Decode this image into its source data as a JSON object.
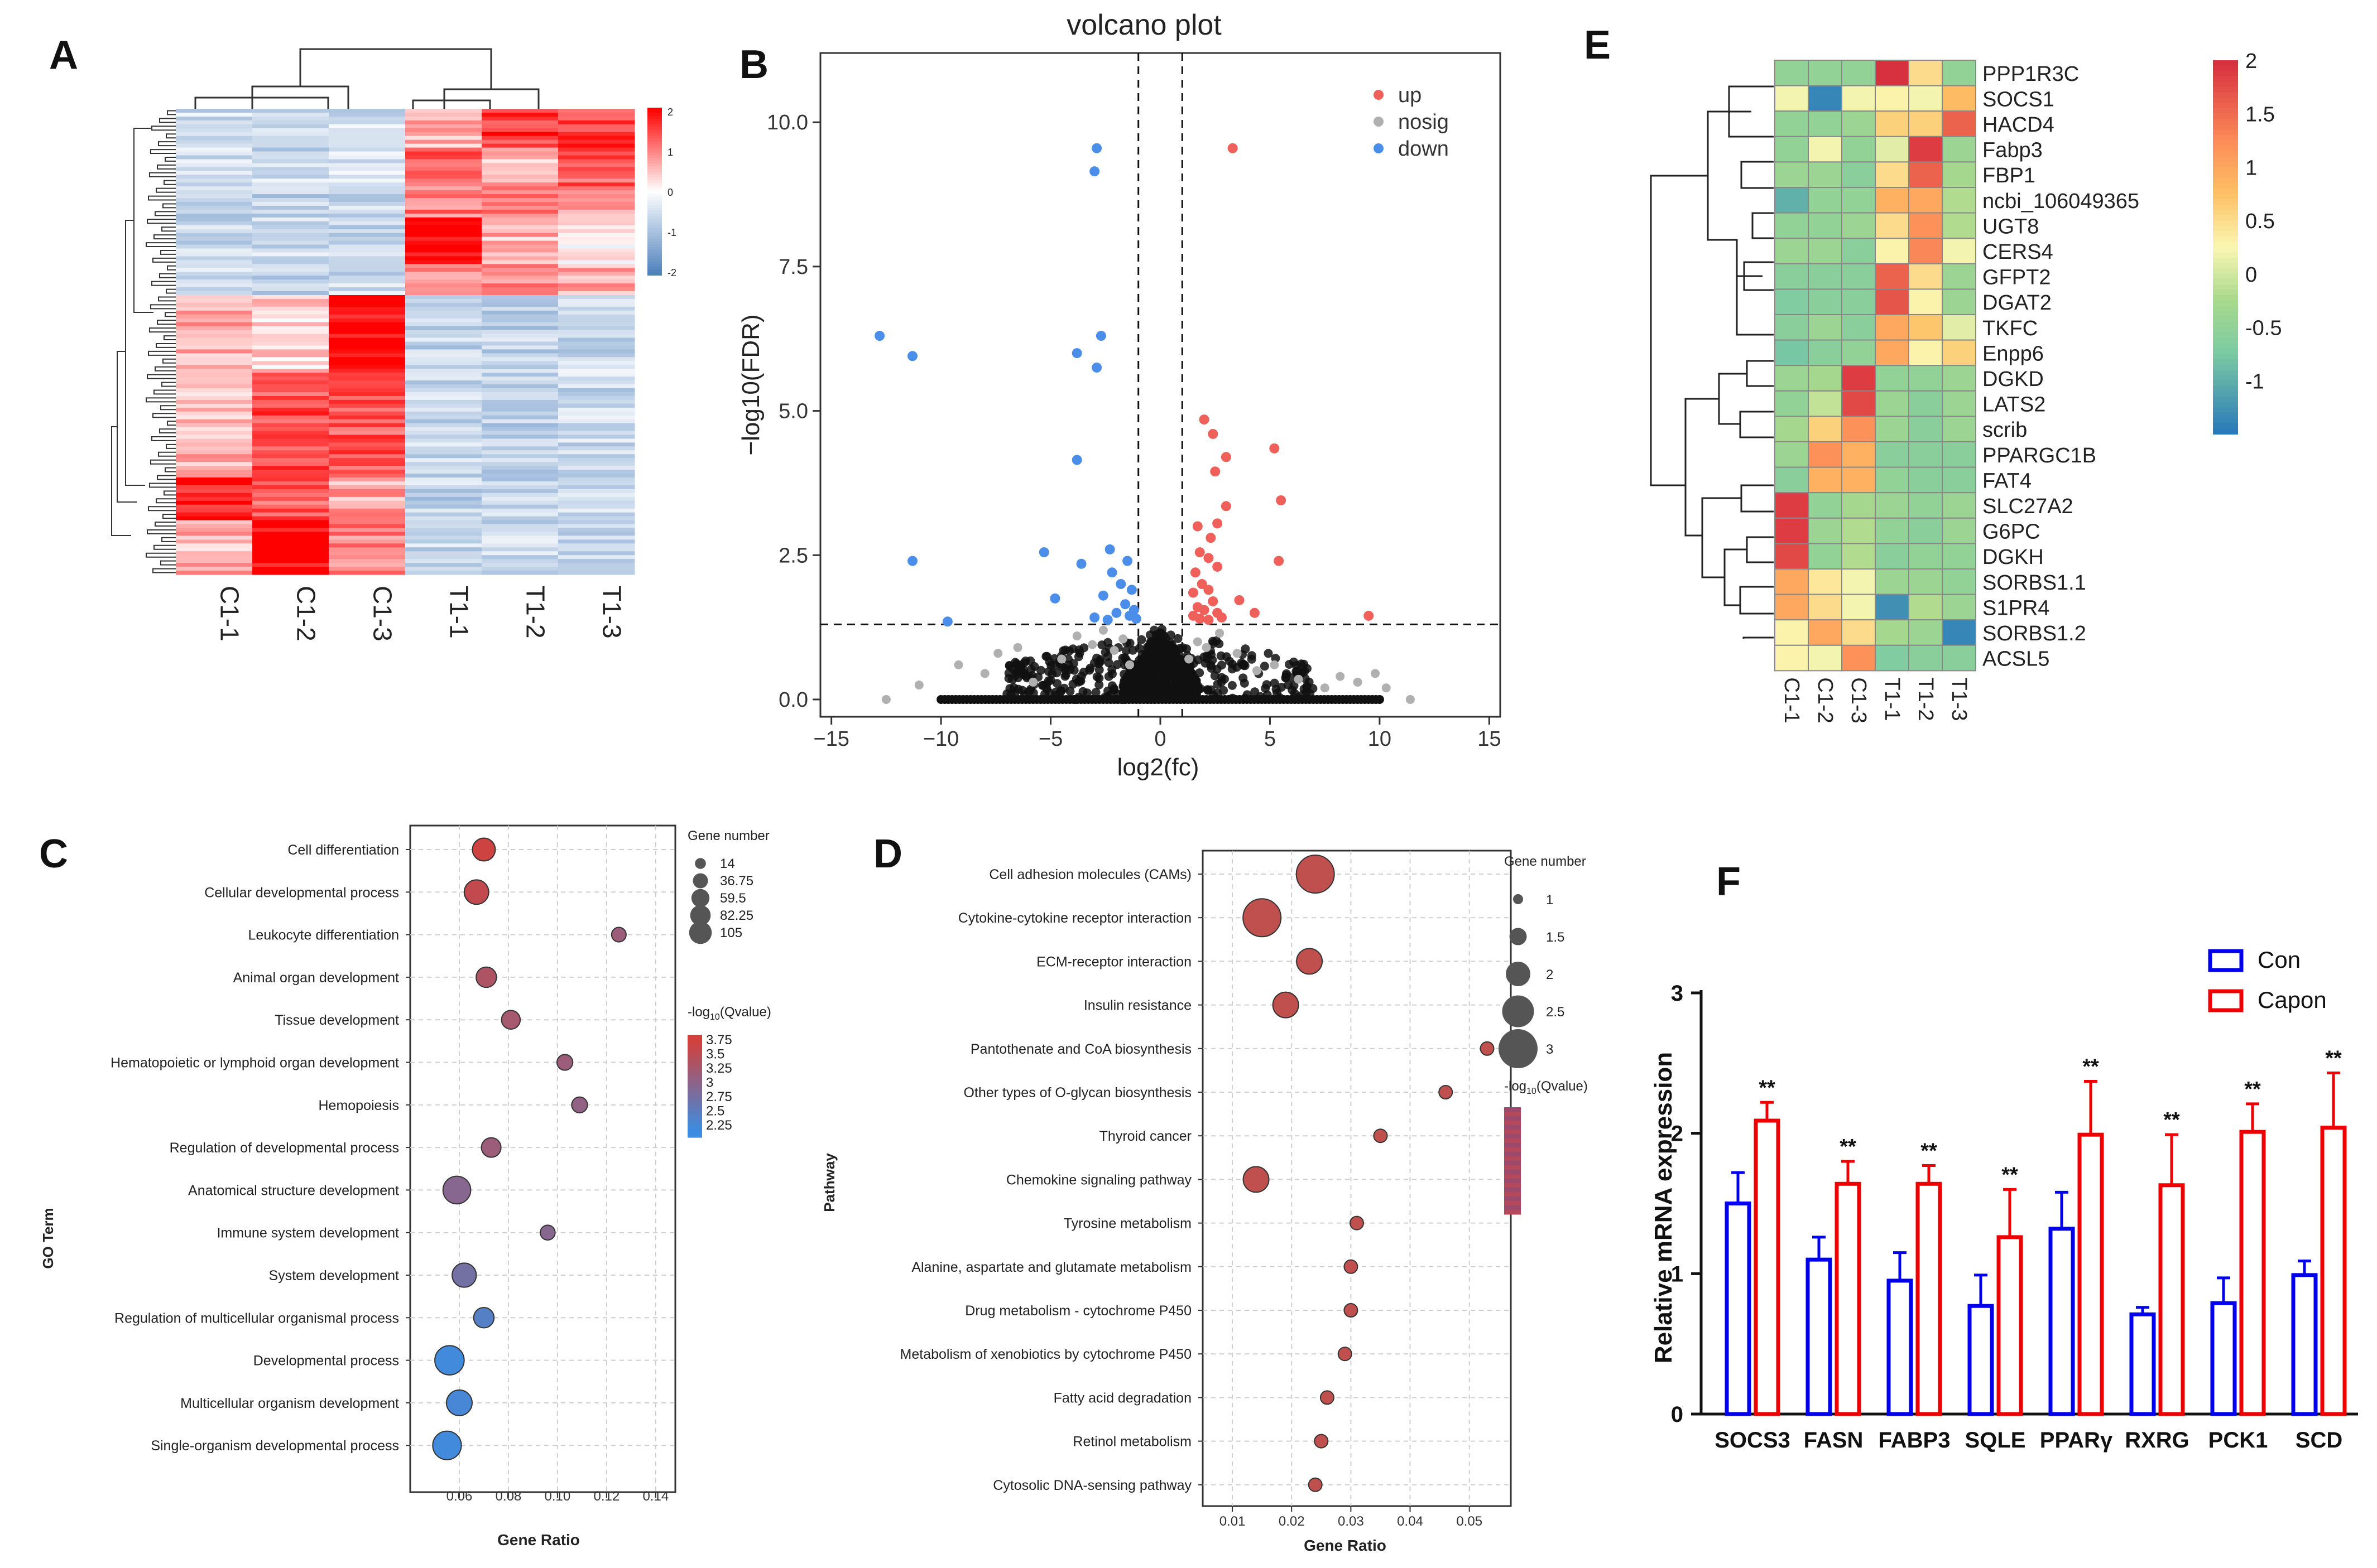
{
  "panel_letters": {
    "A": "A",
    "B": "B",
    "C": "C",
    "D": "D",
    "E": "E",
    "F": "F"
  },
  "colors": {
    "up": "#f0605a",
    "nosig": "#b0b0b0",
    "down": "#4a8eea",
    "heat_red": "#ff0000",
    "heat_blue": "#4f81bd",
    "con": "#0000ee",
    "capon": "#ee0000"
  },
  "chart_data": [
    {
      "id": "A",
      "type": "heatmap",
      "columns": [
        "C1-1",
        "C1-2",
        "C1-3",
        "T1-1",
        "T1-2",
        "T1-3"
      ],
      "row_count": 120,
      "legend": {
        "ticks": [
          "2",
          "1",
          "0",
          "-1",
          "-2"
        ],
        "range": [
          -2,
          2
        ]
      }
    },
    {
      "id": "B",
      "type": "scatter",
      "title": "volcano plot",
      "xlabel": "log2(fc)",
      "ylabel": "−log10(FDR)",
      "xlim": [
        -15.5,
        15.5
      ],
      "ylim": [
        -0.3,
        11.2
      ],
      "xticks": [
        -15,
        -10,
        -5,
        0,
        5,
        10,
        15
      ],
      "xtick_labels": [
        "−15",
        "−10",
        "−5",
        "0",
        "5",
        "10",
        "15"
      ],
      "yticks": [
        0,
        2.5,
        5,
        7.5,
        10
      ],
      "ytick_labels": [
        "0.0",
        "2.5",
        "5.0",
        "7.5",
        "10.0"
      ],
      "fc_threshold": [
        -1,
        1
      ],
      "fdr_threshold": 1.3,
      "legend": [
        {
          "label": "up",
          "key": "up"
        },
        {
          "label": "nosig",
          "key": "nosig"
        },
        {
          "label": "down",
          "key": "down"
        }
      ],
      "up_points": [
        [
          3.3,
          9.55
        ],
        [
          2.0,
          4.85
        ],
        [
          2.4,
          4.6
        ],
        [
          5.2,
          4.35
        ],
        [
          3.0,
          4.2
        ],
        [
          2.5,
          3.95
        ],
        [
          5.5,
          3.45
        ],
        [
          3.0,
          3.35
        ],
        [
          2.6,
          3.05
        ],
        [
          1.7,
          3.0
        ],
        [
          2.3,
          2.8
        ],
        [
          1.8,
          2.55
        ],
        [
          2.2,
          2.45
        ],
        [
          5.4,
          2.4
        ],
        [
          2.6,
          2.3
        ],
        [
          1.6,
          2.2
        ],
        [
          1.9,
          2.0
        ],
        [
          2.2,
          1.9
        ],
        [
          1.5,
          1.85
        ],
        [
          2.4,
          1.7
        ],
        [
          3.6,
          1.72
        ],
        [
          1.7,
          1.6
        ],
        [
          2.0,
          1.55
        ],
        [
          2.6,
          1.5
        ],
        [
          1.5,
          1.45
        ],
        [
          1.8,
          1.4
        ],
        [
          2.2,
          1.38
        ],
        [
          2.8,
          1.42
        ],
        [
          4.3,
          1.5
        ],
        [
          9.5,
          1.45
        ]
      ],
      "down_points": [
        [
          -2.9,
          9.55
        ],
        [
          -3.0,
          9.15
        ],
        [
          -12.8,
          6.3
        ],
        [
          -11.3,
          5.95
        ],
        [
          -2.7,
          6.3
        ],
        [
          -3.8,
          6.0
        ],
        [
          -2.9,
          5.75
        ],
        [
          -3.8,
          4.15
        ],
        [
          -11.3,
          2.4
        ],
        [
          -5.3,
          2.55
        ],
        [
          -2.3,
          2.6
        ],
        [
          -1.5,
          2.4
        ],
        [
          -3.6,
          2.35
        ],
        [
          -2.2,
          2.2
        ],
        [
          -1.8,
          2.0
        ],
        [
          -1.3,
          1.9
        ],
        [
          -4.8,
          1.75
        ],
        [
          -2.6,
          1.8
        ],
        [
          -1.6,
          1.65
        ],
        [
          -1.2,
          1.55
        ],
        [
          -2.0,
          1.5
        ],
        [
          -1.4,
          1.45
        ],
        [
          -1.1,
          1.4
        ],
        [
          -3.0,
          1.42
        ],
        [
          -9.7,
          1.35
        ],
        [
          -2.4,
          1.38
        ]
      ],
      "nosig_points": [
        [
          -12.5,
          0.0
        ],
        [
          -11.0,
          0.25
        ],
        [
          -9.2,
          0.6
        ],
        [
          -8.0,
          0.45
        ],
        [
          -7.4,
          0.8
        ],
        [
          -6.5,
          0.9
        ],
        [
          -5.8,
          0.3
        ],
        [
          -4.5,
          0.7
        ],
        [
          -3.8,
          1.1
        ],
        [
          -3.1,
          0.95
        ],
        [
          -2.6,
          1.2
        ],
        [
          -2.1,
          0.85
        ],
        [
          -1.7,
          1.05
        ],
        [
          -1.4,
          0.6
        ],
        [
          1.3,
          0.7
        ],
        [
          1.7,
          1.0
        ],
        [
          2.1,
          0.9
        ],
        [
          2.7,
          1.15
        ],
        [
          3.5,
          0.8
        ],
        [
          4.4,
          0.5
        ],
        [
          5.2,
          0.6
        ],
        [
          6.3,
          0.35
        ],
        [
          7.5,
          0.2
        ],
        [
          8.2,
          0.4
        ],
        [
          9.0,
          0.3
        ],
        [
          9.8,
          0.45
        ],
        [
          10.3,
          0.2
        ],
        [
          11.4,
          0.0
        ]
      ]
    },
    {
      "id": "C",
      "type": "scatter",
      "xlabel": "Gene Ratio",
      "ylabel": "GO Term",
      "xlim": [
        0.04,
        0.148
      ],
      "xticks": [
        0.06,
        0.08,
        0.1,
        0.12,
        0.14
      ],
      "xtick_labels": [
        "0.06",
        "0.08",
        "0.10",
        "0.12",
        "0.14"
      ],
      "terms": [
        "Cell differentiation",
        "Cellular developmental process",
        "Leukocyte differentiation",
        "Animal organ development",
        "Tissue development",
        "Hematopoietic or lymphoid organ development",
        "Hemopoiesis",
        "Regulation of developmental process",
        "Anatomical structure development",
        "Immune system development",
        "System development",
        "Regulation of multicellular organismal process",
        "Developmental process",
        "Multicellular organism development",
        "Single-organism developmental process"
      ],
      "gene_ratio": [
        0.07,
        0.067,
        0.125,
        0.071,
        0.081,
        0.103,
        0.109,
        0.073,
        0.059,
        0.096,
        0.062,
        0.07,
        0.056,
        0.06,
        0.055
      ],
      "gene_number": [
        52,
        62,
        14,
        38,
        30,
        18,
        18,
        34,
        85,
        15,
        60,
        38,
        98,
        70,
        92
      ],
      "neg_log10_q": [
        3.7,
        3.6,
        3.2,
        3.4,
        3.3,
        3.2,
        3.1,
        3.2,
        3.0,
        3.0,
        2.8,
        2.5,
        2.3,
        2.35,
        2.3
      ],
      "size_legend": {
        "title": "Gene number",
        "labels": [
          "14",
          "36.75",
          "59.5",
          "82.25",
          "105"
        ],
        "values": [
          14,
          36.75,
          59.5,
          82.25,
          105
        ]
      },
      "color_legend": {
        "title": "-log",
        "sub": "10",
        "tail": "(Qvalue)",
        "labels": [
          "3.75",
          "3.5",
          "3.25",
          "3",
          "2.75",
          "2.5",
          "2.25"
        ]
      }
    },
    {
      "id": "D",
      "type": "scatter",
      "xlabel": "Gene Ratio",
      "ylabel": "Pathway",
      "xlim": [
        0.005,
        0.057
      ],
      "xticks": [
        0.01,
        0.02,
        0.03,
        0.04,
        0.05
      ],
      "xtick_labels": [
        "0.01",
        "0.02",
        "0.03",
        "0.04",
        "0.05"
      ],
      "terms": [
        "Cell adhesion molecules (CAMs)",
        "Cytokine-cytokine receptor interaction",
        "ECM-receptor interaction",
        "Insulin resistance",
        "Pantothenate and CoA biosynthesis",
        "Other types of O-glycan biosynthesis",
        "Thyroid cancer",
        "Chemokine signaling pathway",
        "Tyrosine metabolism",
        "Alanine, aspartate and glutamate metabolism",
        "Drug metabolism - cytochrome P450",
        "Metabolism of xenobiotics by cytochrome P450",
        "Fatty acid degradation",
        "Retinol metabolism",
        "Cytosolic DNA-sensing pathway"
      ],
      "gene_ratio": [
        0.024,
        0.015,
        0.023,
        0.019,
        0.053,
        0.046,
        0.035,
        0.014,
        0.031,
        0.03,
        0.03,
        0.029,
        0.026,
        0.025,
        0.024
      ],
      "gene_number": [
        3,
        3,
        2,
        2,
        1,
        1,
        1,
        2,
        1,
        1,
        1,
        1,
        1,
        1,
        1
      ],
      "size_legend": {
        "title": "Gene number",
        "labels": [
          "1",
          "1.5",
          "2",
          "2.5",
          "3"
        ],
        "values": [
          1,
          1.5,
          2,
          2.5,
          3
        ]
      },
      "color_legend": {
        "title": "-log",
        "sub": "10",
        "tail": "(Qvalue)"
      }
    },
    {
      "id": "E",
      "type": "heatmap",
      "columns": [
        "C1-1",
        "C1-2",
        "C1-3",
        "T1-1",
        "T1-2",
        "T1-3"
      ],
      "rows": [
        "PPP1R3C",
        "SOCS1",
        "HACD4",
        "Fabp3",
        "FBP1",
        "ncbi_106049365",
        "UGT8",
        "CERS4",
        "GFPT2",
        "DGAT2",
        "TKFC",
        "Enpp6",
        "DGKD",
        "LATS2",
        "scrib",
        "PPARGC1B",
        "FAT4",
        "SLC27A2",
        "G6PC",
        "DGKH",
        "SORBS1.1",
        "S1PR4",
        "SORBS1.2",
        "ACSL5"
      ],
      "values": [
        [
          -0.5,
          -0.5,
          -0.5,
          2.0,
          0.5,
          -0.5
        ],
        [
          0.2,
          -1.4,
          0.2,
          0.3,
          0.2,
          0.8
        ],
        [
          -0.5,
          -0.5,
          -0.4,
          0.6,
          0.6,
          1.6
        ],
        [
          -0.5,
          0.2,
          -0.5,
          0.1,
          1.9,
          -0.4
        ],
        [
          -0.4,
          -0.4,
          -0.6,
          0.5,
          1.6,
          -0.3
        ],
        [
          -1.0,
          -0.5,
          -0.5,
          0.9,
          1.0,
          -0.2
        ],
        [
          -0.5,
          -0.5,
          -0.4,
          0.5,
          1.2,
          -0.2
        ],
        [
          -0.4,
          -0.4,
          -0.6,
          0.3,
          1.3,
          0.2
        ],
        [
          -0.6,
          -0.6,
          -0.6,
          1.6,
          0.5,
          -0.4
        ],
        [
          -0.7,
          -0.6,
          -0.6,
          1.7,
          0.3,
          -0.4
        ],
        [
          -0.6,
          -0.4,
          -0.6,
          1.0,
          0.7,
          0.1
        ],
        [
          -0.8,
          -0.6,
          -0.5,
          1.0,
          0.3,
          0.6
        ],
        [
          -0.4,
          -0.3,
          1.9,
          -0.5,
          -0.5,
          -0.4
        ],
        [
          -0.5,
          -0.1,
          1.8,
          -0.4,
          -0.6,
          -0.4
        ],
        [
          -0.3,
          0.6,
          1.2,
          -0.4,
          -0.6,
          -0.4
        ],
        [
          -0.4,
          1.2,
          0.9,
          -0.6,
          -0.6,
          -0.6
        ],
        [
          -0.6,
          0.9,
          0.9,
          -0.5,
          -0.6,
          -0.6
        ],
        [
          1.9,
          -0.5,
          -0.3,
          -0.4,
          -0.5,
          -0.4
        ],
        [
          1.9,
          -0.4,
          -0.2,
          -0.5,
          -0.6,
          -0.4
        ],
        [
          1.8,
          -0.5,
          -0.2,
          -0.6,
          -0.5,
          -0.5
        ],
        [
          1.0,
          0.4,
          0.2,
          -0.4,
          -0.4,
          -0.5
        ],
        [
          1.0,
          0.5,
          0.2,
          -1.3,
          -0.2,
          -0.4
        ],
        [
          0.3,
          1.0,
          0.5,
          -0.3,
          -0.4,
          -1.4
        ],
        [
          0.3,
          0.2,
          1.2,
          -0.7,
          -0.6,
          -0.6
        ]
      ],
      "legend": {
        "ticks": [
          "2",
          "1.5",
          "1",
          "0.5",
          "0",
          "-0.5",
          "-1"
        ],
        "values": [
          2,
          1.5,
          1,
          0.5,
          0,
          -0.5,
          -1
        ],
        "range": [
          -1.5,
          2
        ]
      }
    },
    {
      "id": "F",
      "type": "bar",
      "ylabel": "Relative mRNA expression",
      "xlabel": "",
      "ylim": [
        0,
        3
      ],
      "yticks": [
        0,
        1,
        2,
        3
      ],
      "categories": [
        "SOCS3",
        "FASN",
        "FABP3",
        "SQLE",
        "PPARγ",
        "RXRG",
        "PCK1",
        "SCD"
      ],
      "series": [
        {
          "name": "Con",
          "values": [
            1.5,
            1.1,
            0.95,
            0.77,
            1.32,
            0.71,
            0.79,
            0.99
          ],
          "errors": [
            0.22,
            0.16,
            0.2,
            0.22,
            0.26,
            0.05,
            0.18,
            0.1
          ]
        },
        {
          "name": "Capon",
          "values": [
            2.09,
            1.64,
            1.64,
            1.26,
            1.99,
            1.63,
            2.01,
            2.04
          ],
          "errors": [
            0.13,
            0.16,
            0.13,
            0.34,
            0.38,
            0.36,
            0.2,
            0.39
          ]
        }
      ],
      "significance": [
        "**",
        "**",
        "**",
        "**",
        "**",
        "**",
        "**",
        "**"
      ]
    }
  ]
}
